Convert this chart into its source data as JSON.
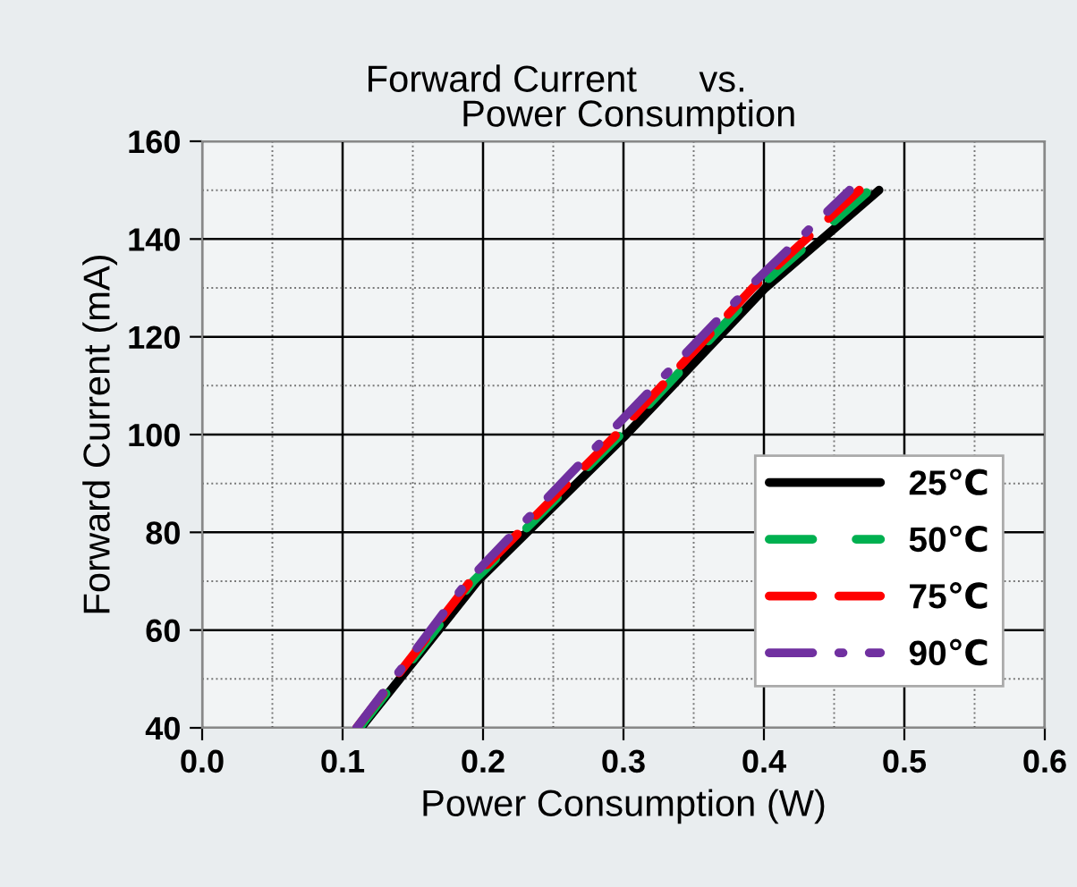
{
  "chart_data": {
    "type": "line",
    "title": "Forward Current      vs.\n              Power Consumption",
    "xlabel": "Power Consumption (W)",
    "ylabel": "Forward Current (mA)",
    "xlim": [
      0.0,
      0.6
    ],
    "xticks": [
      {
        "value": 0.0,
        "label": "0.0"
      },
      0.1,
      0.2,
      0.3,
      0.4,
      0.5,
      0.6
    ],
    "ylim": [
      40,
      160
    ],
    "yticks": [
      40,
      60,
      80,
      100,
      120,
      140,
      160
    ],
    "grid": true,
    "legend": "bottom right",
    "marker": "none",
    "series": [
      {
        "name": "25℃",
        "color": "#000000",
        "line_style": "solid",
        "x": [
          0.113,
          0.196,
          0.302,
          0.401,
          0.482
        ],
        "values": [
          40,
          70,
          100,
          130,
          150
        ]
      },
      {
        "name": "50℃",
        "color": "#00b050",
        "line_style": "dashed",
        "x": [
          0.112,
          0.193,
          0.298,
          0.396,
          0.475
        ],
        "values": [
          40,
          70,
          100,
          130,
          150
        ]
      },
      {
        "name": "75℃",
        "color": "#ff0000",
        "line_style": "dashed",
        "x": [
          0.11,
          0.191,
          0.295,
          0.392,
          0.468
        ],
        "values": [
          40,
          70,
          100,
          130,
          150
        ]
      },
      {
        "name": "90℃",
        "color": "#7030a0",
        "line_style": "dashdot",
        "x": [
          0.11,
          0.189,
          0.289,
          0.389,
          0.461
        ],
        "values": [
          40,
          70,
          100,
          130,
          150
        ]
      }
    ]
  }
}
